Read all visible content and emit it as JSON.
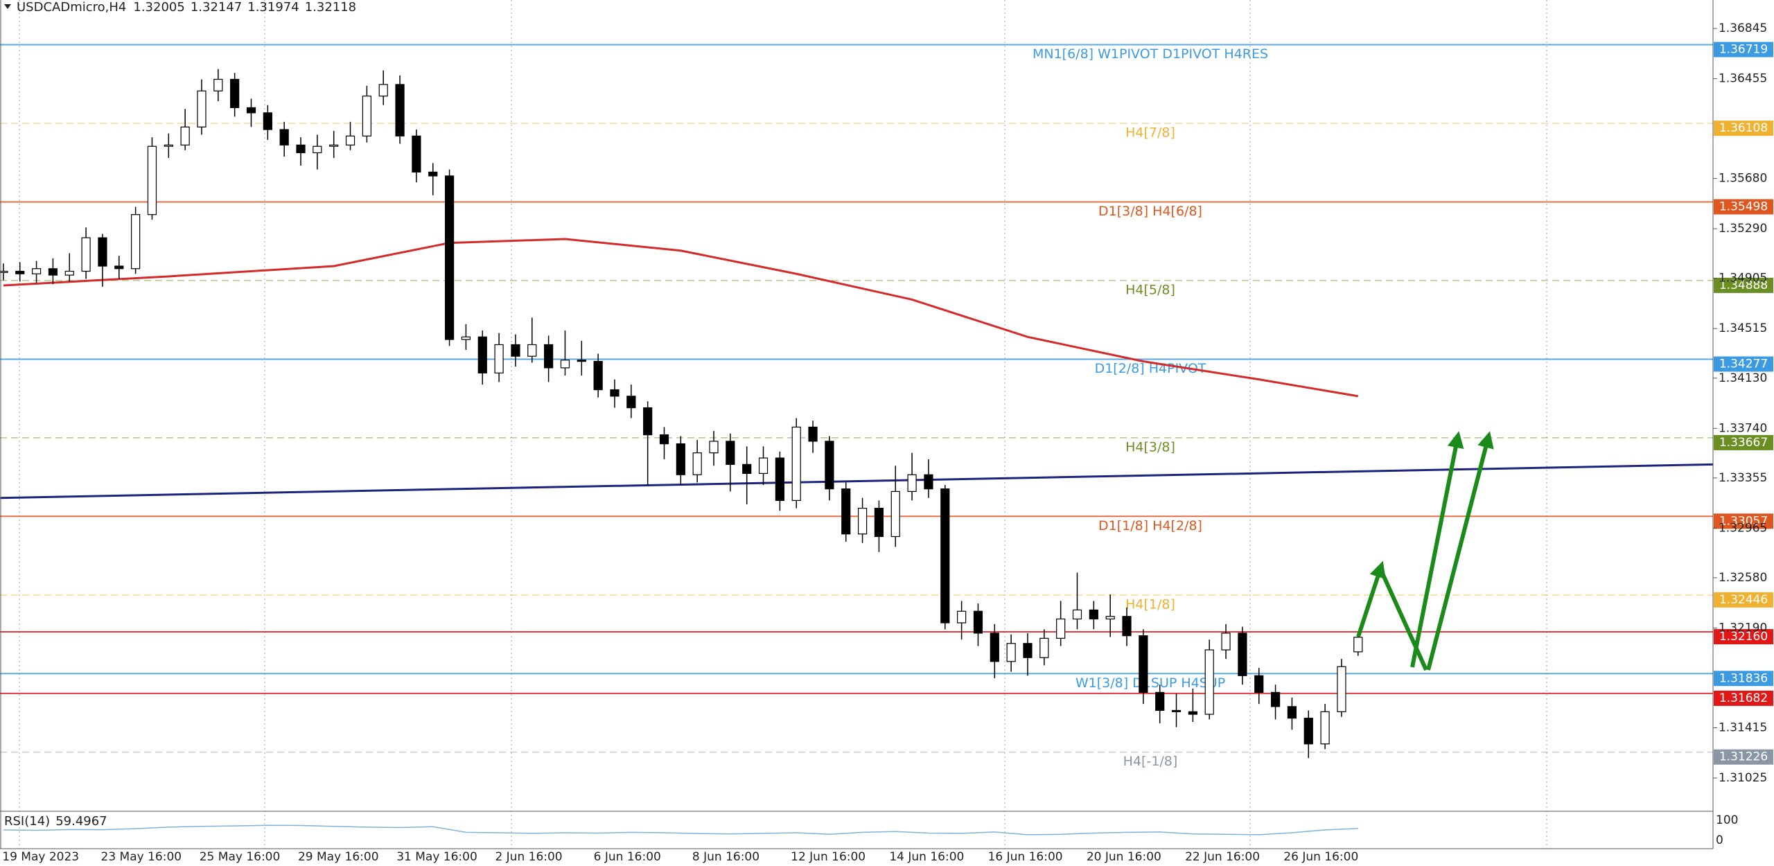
{
  "header": {
    "symbol": "USDCADmicro,H4",
    "ohlc": [
      1.32005,
      1.32147,
      1.31974,
      1.32118
    ]
  },
  "chart_data": {
    "type": "candlestick",
    "ylim": [
      1.30767,
      1.37066
    ],
    "yticks": [
      1.36845,
      1.36455,
      {
        "value": 1.3568,
        "label": "1.35680"
      },
      {
        "value": 1.3529,
        "label": "1.35290"
      },
      1.34905,
      1.34515,
      {
        "value": 1.3413,
        "label": "1.34130"
      },
      {
        "value": 1.3374,
        "label": "1.33740"
      },
      1.33355,
      1.32965,
      {
        "value": 1.3258,
        "label": "1.32580"
      },
      {
        "value": 1.3219,
        "label": "1.32190"
      },
      1.31415,
      1.31025
    ],
    "x_labels": [
      "19 May 2023",
      "23 May 16:00",
      "25 May 16:00",
      "29 May 16:00",
      "31 May 16:00",
      "2 Jun 16:00",
      "6 Jun 16:00",
      "8 Jun 16:00",
      "12 Jun 16:00",
      "14 Jun 16:00",
      "16 Jun 16:00",
      "20 Jun 16:00",
      "22 Jun 16:00",
      "26 Jun 16:00"
    ],
    "candles": {
      "open": [
        1.3495,
        1.3496,
        1.3494,
        1.3498,
        1.3493,
        1.3496,
        1.3522,
        1.35,
        1.3498,
        1.354,
        1.3593,
        1.3594,
        1.3608,
        1.3636,
        1.3645,
        1.3623,
        1.3619,
        1.3606,
        1.3594,
        1.3588,
        1.3593,
        1.3594,
        1.3601,
        1.3632,
        1.3641,
        1.3601,
        1.3573,
        1.357,
        1.3443,
        1.3445,
        1.3417,
        1.3439,
        1.343,
        1.3439,
        1.3421,
        1.3427,
        1.3426,
        1.3404,
        1.3399,
        1.339,
        1.3369,
        1.3362,
        1.3338,
        1.3355,
        1.3364,
        1.3346,
        1.3339,
        1.3351,
        1.3318,
        1.3375,
        1.3364,
        1.3327,
        1.3292,
        1.3312,
        1.329,
        1.3325,
        1.3338,
        1.3327,
        1.3223,
        1.3232,
        1.3215,
        1.3193,
        1.3207,
        1.3196,
        1.3211,
        1.3226,
        1.3233,
        1.3226,
        1.3228,
        1.3213,
        1.3169,
        1.3155,
        1.3154,
        1.3152,
        1.3202,
        1.3215,
        1.3182,
        1.3169,
        1.3158,
        1.3149,
        1.3129,
        1.3154,
        1.32005
      ],
      "high": [
        1.3502,
        1.3503,
        1.3504,
        1.3506,
        1.351,
        1.353,
        1.3525,
        1.3508,
        1.3546,
        1.36,
        1.3603,
        1.3622,
        1.3645,
        1.3653,
        1.365,
        1.363,
        1.3625,
        1.3612,
        1.36,
        1.3602,
        1.3605,
        1.3612,
        1.364,
        1.3652,
        1.3648,
        1.3606,
        1.358,
        1.3575,
        1.3455,
        1.345,
        1.3448,
        1.3447,
        1.346,
        1.3446,
        1.345,
        1.3442,
        1.3432,
        1.3412,
        1.3408,
        1.3395,
        1.3375,
        1.3368,
        1.3365,
        1.3372,
        1.337,
        1.336,
        1.336,
        1.3356,
        1.3382,
        1.338,
        1.3368,
        1.3332,
        1.332,
        1.3318,
        1.3345,
        1.3355,
        1.335,
        1.333,
        1.324,
        1.3238,
        1.3222,
        1.3214,
        1.3215,
        1.3218,
        1.324,
        1.3262,
        1.324,
        1.3245,
        1.3235,
        1.3218,
        1.3175,
        1.3168,
        1.3172,
        1.321,
        1.3222,
        1.322,
        1.3188,
        1.3175,
        1.3165,
        1.3155,
        1.316,
        1.3195,
        1.32147
      ],
      "low": [
        1.3489,
        1.3488,
        1.3487,
        1.3486,
        1.3488,
        1.349,
        1.3484,
        1.349,
        1.3494,
        1.3536,
        1.3584,
        1.359,
        1.3602,
        1.3628,
        1.3616,
        1.3608,
        1.3598,
        1.3585,
        1.3578,
        1.3575,
        1.3584,
        1.359,
        1.3596,
        1.3625,
        1.3595,
        1.3565,
        1.3555,
        1.3438,
        1.3435,
        1.3408,
        1.341,
        1.3422,
        1.3425,
        1.341,
        1.3415,
        1.3415,
        1.3398,
        1.339,
        1.3382,
        1.333,
        1.335,
        1.333,
        1.3332,
        1.3345,
        1.3325,
        1.3315,
        1.333,
        1.331,
        1.3312,
        1.3355,
        1.3318,
        1.3286,
        1.3285,
        1.3278,
        1.3282,
        1.3318,
        1.332,
        1.3218,
        1.321,
        1.3205,
        1.318,
        1.3185,
        1.3182,
        1.319,
        1.3205,
        1.3218,
        1.3218,
        1.3212,
        1.3205,
        1.316,
        1.3145,
        1.3142,
        1.3146,
        1.3148,
        1.3195,
        1.3175,
        1.316,
        1.3148,
        1.314,
        1.3118,
        1.3125,
        1.315,
        1.31974
      ],
      "close": [
        1.3496,
        1.3494,
        1.3498,
        1.3493,
        1.3496,
        1.3522,
        1.35,
        1.3498,
        1.354,
        1.3593,
        1.3594,
        1.3608,
        1.3636,
        1.3645,
        1.3623,
        1.3619,
        1.3606,
        1.3594,
        1.3588,
        1.3593,
        1.3594,
        1.3601,
        1.3632,
        1.3641,
        1.3601,
        1.3573,
        1.357,
        1.3443,
        1.3445,
        1.3417,
        1.3439,
        1.343,
        1.3439,
        1.3421,
        1.3427,
        1.3426,
        1.3404,
        1.3399,
        1.339,
        1.3369,
        1.3362,
        1.3338,
        1.3355,
        1.3364,
        1.3346,
        1.3339,
        1.3351,
        1.3318,
        1.3375,
        1.3364,
        1.3327,
        1.3292,
        1.3312,
        1.329,
        1.3325,
        1.3338,
        1.3327,
        1.3223,
        1.3232,
        1.3215,
        1.3193,
        1.3207,
        1.3196,
        1.3211,
        1.3226,
        1.3233,
        1.3226,
        1.3228,
        1.3213,
        1.3169,
        1.3155,
        1.3154,
        1.3152,
        1.3202,
        1.3215,
        1.3182,
        1.3169,
        1.3158,
        1.3149,
        1.3129,
        1.3154,
        1.3189,
        1.32118
      ]
    },
    "ma": {
      "color": "#d42a2a",
      "x": [
        0,
        10,
        20,
        27,
        34,
        41,
        48,
        55,
        62,
        69,
        76,
        82
      ],
      "values": [
        1.3485,
        1.3492,
        1.35,
        1.3518,
        1.3521,
        1.3512,
        1.3494,
        1.3474,
        1.3445,
        1.3426,
        1.3412,
        1.3399
      ]
    },
    "trendline": {
      "color": "#1a237e",
      "x": [
        -0.2,
        103.5
      ],
      "values": [
        1.332,
        1.3346
      ]
    },
    "levels": [
      {
        "value": 1.36719,
        "label": "MN1[6/8] W1PIVOT D1PIVOT H4RES",
        "color": "#3c9be0",
        "style": "solid"
      },
      {
        "value": 1.36108,
        "label": "H4[7/8]",
        "color": "#f0b030",
        "style": "dashed"
      },
      {
        "value": 1.35498,
        "label": "D1[3/8] H4[6/8]",
        "color": "#e0561f",
        "style": "solid"
      },
      {
        "value": 1.34888,
        "label": "H4[5/8]",
        "color": "#6b8e23",
        "style": "dashed"
      },
      {
        "value": 1.34277,
        "label": "D1[2/8] H4PIVOT",
        "color": "#3c9be0",
        "style": "solid"
      },
      {
        "value": 1.33667,
        "label": "H4[3/8]",
        "color": "#6b8e23",
        "style": "dashed"
      },
      {
        "value": 1.33057,
        "label": "D1[1/8] H4[2/8]",
        "color": "#e0561f",
        "style": "solid"
      },
      {
        "value": 1.32446,
        "label": "H4[1/8]",
        "color": "#f0b030",
        "style": "dashed"
      },
      {
        "value": 1.3216,
        "value_label": "1.32160",
        "color": "#e01818",
        "style": "solid"
      },
      {
        "value": 1.31836,
        "label": "W1[3/8] D1SUP H4SUP",
        "color": "#3c9be0",
        "style": "solid"
      },
      {
        "value": 1.31682,
        "color": "#e01818",
        "style": "solid"
      },
      {
        "value": 1.31226,
        "label": "H4[-1/8]",
        "color": "#8a96a3",
        "style": "dashed"
      }
    ],
    "rsi": {
      "title": "RSI(14)",
      "value": 59.4967,
      "ylim": [
        0,
        100
      ],
      "yticks": [
        100,
        0
      ],
      "color": "#7fb3d8",
      "x": [
        0,
        2,
        4,
        6,
        8,
        10,
        12,
        14,
        16,
        18,
        20,
        22,
        24,
        26,
        28,
        30,
        32,
        34,
        36,
        38,
        40,
        42,
        44,
        46,
        48,
        50,
        52,
        54,
        56,
        58,
        60,
        62,
        64,
        66,
        68,
        70,
        72,
        74,
        76,
        78,
        80,
        82
      ],
      "values": [
        52,
        50,
        54,
        53,
        58,
        66,
        70,
        72,
        75,
        74,
        70,
        66,
        64,
        68,
        40,
        38,
        35,
        38,
        36,
        40,
        38,
        34,
        32,
        35,
        38,
        30,
        40,
        44,
        36,
        35,
        42,
        28,
        30,
        36,
        40,
        42,
        32,
        30,
        28,
        38,
        52,
        59
      ]
    }
  }
}
